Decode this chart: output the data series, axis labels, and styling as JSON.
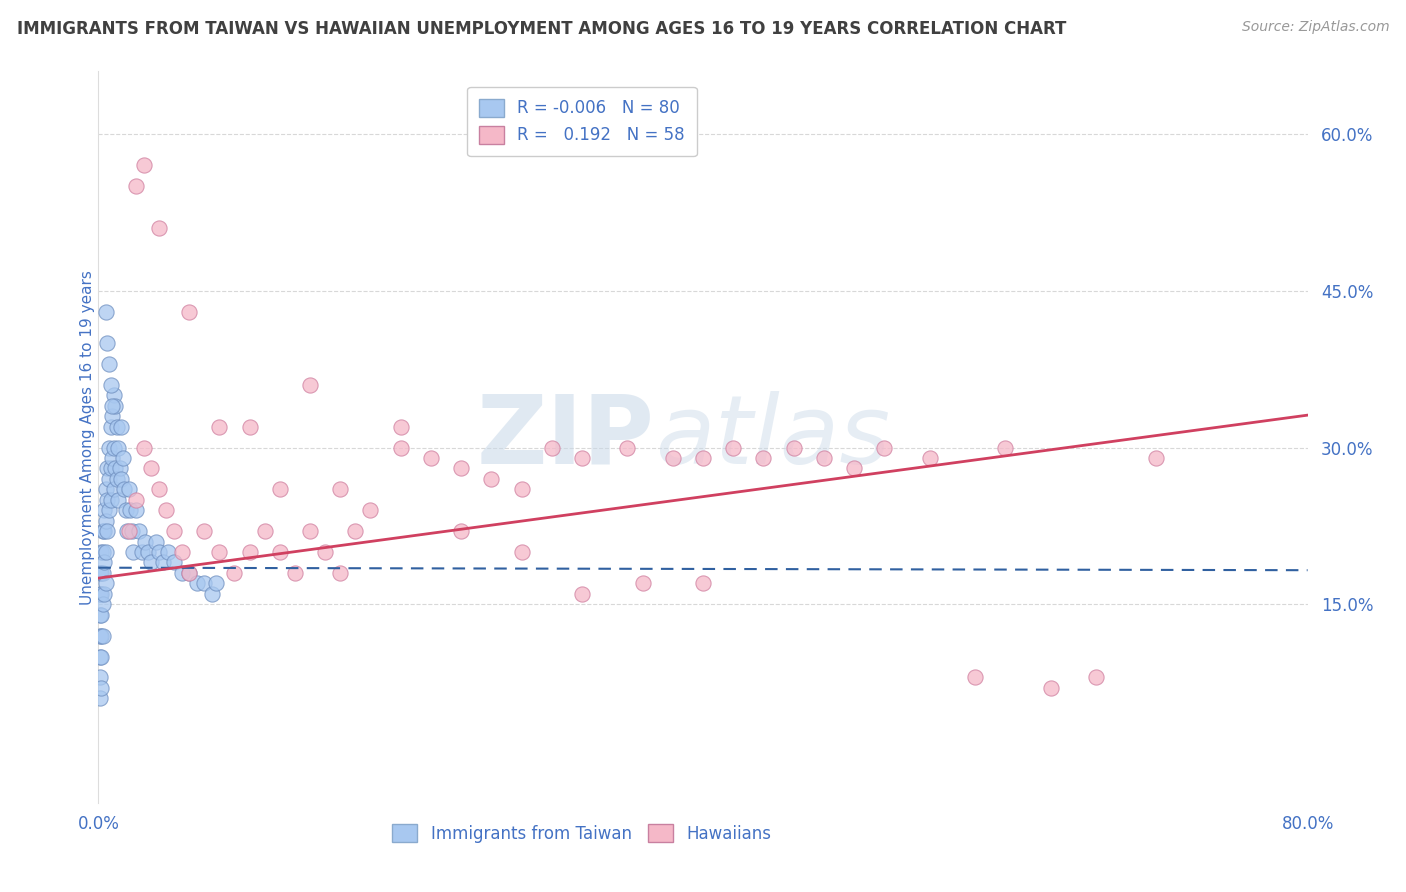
{
  "title": "IMMIGRANTS FROM TAIWAN VS HAWAIIAN UNEMPLOYMENT AMONG AGES 16 TO 19 YEARS CORRELATION CHART",
  "source": "Source: ZipAtlas.com",
  "ylabel": "Unemployment Among Ages 16 to 19 years",
  "xmin": 0.0,
  "xmax": 0.8,
  "ymin": -0.04,
  "ymax": 0.66,
  "ytick_vals": [
    0.15,
    0.3,
    0.45,
    0.6
  ],
  "ytick_labels": [
    "15.0%",
    "30.0%",
    "45.0%",
    "60.0%"
  ],
  "xtick_vals": [
    0.0,
    0.8
  ],
  "xtick_labels": [
    "0.0%",
    "80.0%"
  ],
  "legend_labels": [
    "Immigrants from Taiwan",
    "Hawaiians"
  ],
  "legend_r_blue": "-0.006",
  "legend_r_pink": "0.192",
  "legend_n_blue": 80,
  "legend_n_pink": 58,
  "blue_scatter_color": "#A8C8F0",
  "pink_scatter_color": "#F5B8C8",
  "blue_line_color": "#3060A0",
  "pink_line_color": "#D04060",
  "text_color": "#4472C4",
  "title_color": "#404040",
  "grid_color": "#D8D8D8",
  "watermark_zip": "ZIP",
  "watermark_atlas": "atlas",
  "blue_intercept": 0.185,
  "blue_slope": -0.003,
  "pink_intercept": 0.175,
  "pink_slope": 0.195,
  "blue_x": [
    0.001,
    0.001,
    0.001,
    0.001,
    0.001,
    0.001,
    0.001,
    0.002,
    0.002,
    0.002,
    0.002,
    0.002,
    0.002,
    0.002,
    0.003,
    0.003,
    0.003,
    0.003,
    0.003,
    0.004,
    0.004,
    0.004,
    0.004,
    0.005,
    0.005,
    0.005,
    0.005,
    0.006,
    0.006,
    0.006,
    0.007,
    0.007,
    0.007,
    0.008,
    0.008,
    0.008,
    0.009,
    0.009,
    0.01,
    0.01,
    0.01,
    0.011,
    0.011,
    0.012,
    0.012,
    0.013,
    0.013,
    0.014,
    0.015,
    0.015,
    0.016,
    0.017,
    0.018,
    0.019,
    0.02,
    0.021,
    0.022,
    0.023,
    0.025,
    0.027,
    0.029,
    0.031,
    0.033,
    0.035,
    0.038,
    0.04,
    0.043,
    0.046,
    0.05,
    0.055,
    0.06,
    0.065,
    0.07,
    0.075,
    0.078,
    0.005,
    0.006,
    0.007,
    0.008,
    0.009
  ],
  "blue_y": [
    0.18,
    0.16,
    0.14,
    0.12,
    0.1,
    0.08,
    0.06,
    0.2,
    0.18,
    0.16,
    0.14,
    0.12,
    0.1,
    0.07,
    0.22,
    0.2,
    0.18,
    0.15,
    0.12,
    0.24,
    0.22,
    0.19,
    0.16,
    0.26,
    0.23,
    0.2,
    0.17,
    0.28,
    0.25,
    0.22,
    0.3,
    0.27,
    0.24,
    0.32,
    0.28,
    0.25,
    0.33,
    0.29,
    0.35,
    0.3,
    0.26,
    0.34,
    0.28,
    0.32,
    0.27,
    0.3,
    0.25,
    0.28,
    0.32,
    0.27,
    0.29,
    0.26,
    0.24,
    0.22,
    0.26,
    0.24,
    0.22,
    0.2,
    0.24,
    0.22,
    0.2,
    0.21,
    0.2,
    0.19,
    0.21,
    0.2,
    0.19,
    0.2,
    0.19,
    0.18,
    0.18,
    0.17,
    0.17,
    0.16,
    0.17,
    0.43,
    0.4,
    0.38,
    0.36,
    0.34
  ],
  "pink_x": [
    0.02,
    0.025,
    0.03,
    0.035,
    0.04,
    0.045,
    0.05,
    0.055,
    0.06,
    0.07,
    0.08,
    0.09,
    0.1,
    0.11,
    0.12,
    0.13,
    0.14,
    0.15,
    0.16,
    0.17,
    0.18,
    0.2,
    0.22,
    0.24,
    0.26,
    0.28,
    0.3,
    0.32,
    0.35,
    0.38,
    0.4,
    0.42,
    0.44,
    0.46,
    0.48,
    0.5,
    0.52,
    0.55,
    0.58,
    0.6,
    0.63,
    0.66,
    0.7,
    0.025,
    0.03,
    0.04,
    0.06,
    0.08,
    0.1,
    0.12,
    0.14,
    0.16,
    0.2,
    0.24,
    0.28,
    0.32,
    0.36,
    0.4
  ],
  "pink_y": [
    0.22,
    0.25,
    0.3,
    0.28,
    0.26,
    0.24,
    0.22,
    0.2,
    0.18,
    0.22,
    0.2,
    0.18,
    0.2,
    0.22,
    0.2,
    0.18,
    0.22,
    0.2,
    0.18,
    0.22,
    0.24,
    0.3,
    0.29,
    0.28,
    0.27,
    0.26,
    0.3,
    0.29,
    0.3,
    0.29,
    0.29,
    0.3,
    0.29,
    0.3,
    0.29,
    0.28,
    0.3,
    0.29,
    0.08,
    0.3,
    0.07,
    0.08,
    0.29,
    0.55,
    0.57,
    0.51,
    0.43,
    0.32,
    0.32,
    0.26,
    0.36,
    0.26,
    0.32,
    0.22,
    0.2,
    0.16,
    0.17,
    0.17
  ]
}
